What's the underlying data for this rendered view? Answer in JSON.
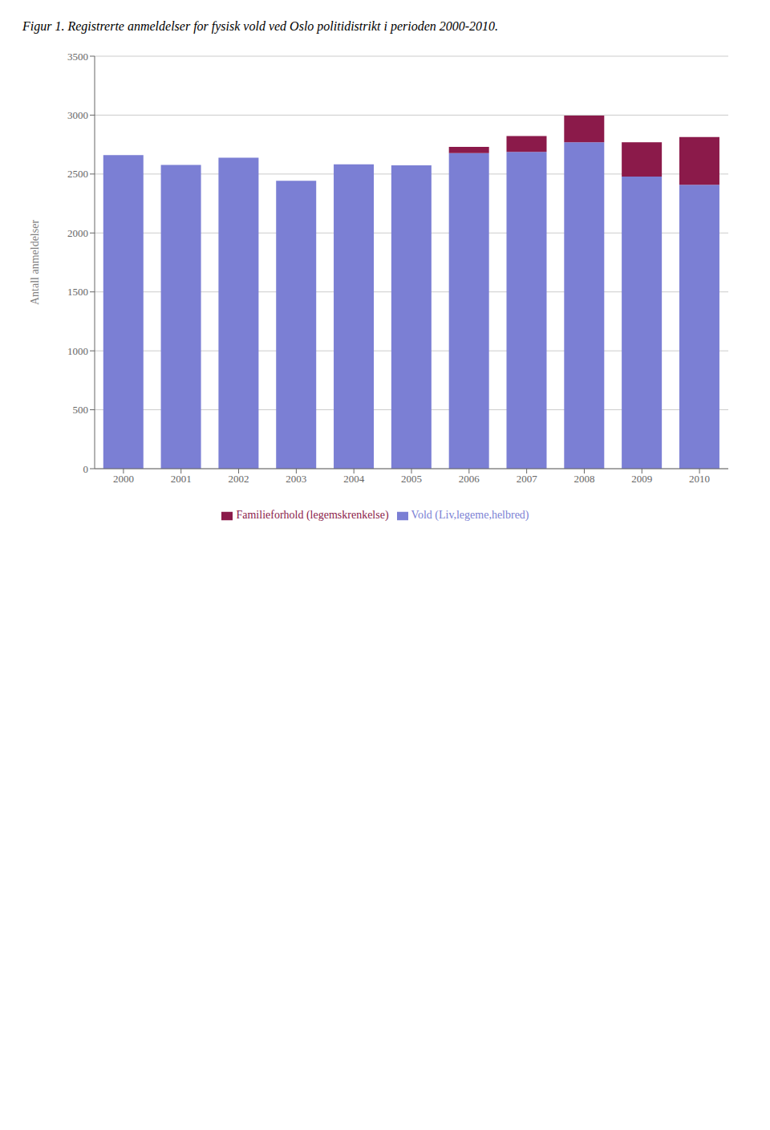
{
  "chart_data": {
    "type": "bar",
    "title": "Figur 1. Registrerte anmeldelser for fysisk vold ved Oslo politidistrikt i perioden 2000-2010.",
    "y_label": "Antall anmeldelser",
    "categories": [
      "2000",
      "2001",
      "2002",
      "2003",
      "2004",
      "2005",
      "2006",
      "2007",
      "2008",
      "2009",
      "2010"
    ],
    "series": [
      {
        "name": "Vold (Liv,legeme,helbred)",
        "color": "#7B7FD4",
        "values": [
          2661,
          2578,
          2639,
          2443,
          2582,
          2574,
          2677,
          2688,
          2769,
          2479,
          2409
        ]
      },
      {
        "name": "Familieforhold (legemskrenkelse)",
        "color": "#8B1A4A",
        "values": [
          0,
          0,
          0,
          0,
          0,
          0,
          53,
          135,
          227,
          290,
          405
        ]
      }
    ],
    "stacked": true,
    "ylim": [
      0,
      3500
    ],
    "yticks": [
      0,
      500,
      1000,
      1500,
      2000,
      2500,
      3000,
      3500
    ],
    "grid": true
  }
}
